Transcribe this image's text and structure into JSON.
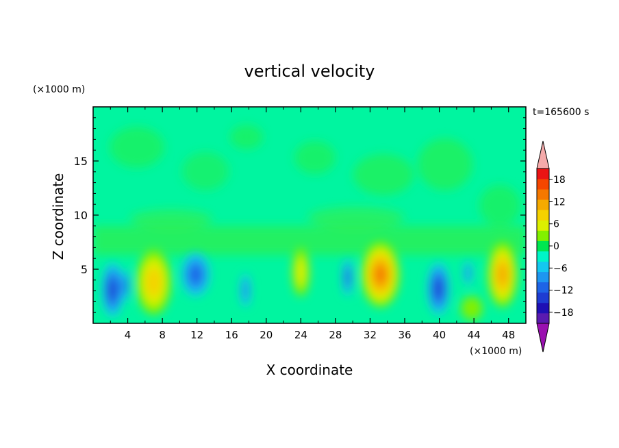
{
  "chart_data": {
    "type": "heatmap",
    "title": "vertical velocity",
    "xlabel": "X coordinate",
    "ylabel": "Z coordinate",
    "x_unit_label": "(×1000 m)",
    "y_unit_label": "(×1000 m)",
    "time_label": "t=165600 s",
    "xlim": [
      0,
      50
    ],
    "ylim": [
      0,
      20
    ],
    "x_ticks": [
      4,
      8,
      12,
      16,
      20,
      24,
      28,
      32,
      36,
      40,
      44,
      48
    ],
    "x_tick_labels": [
      "4",
      "8",
      "12",
      "16",
      "20",
      "24",
      "28",
      "32",
      "36",
      "40",
      "44",
      "48"
    ],
    "y_ticks": [
      5,
      10,
      15
    ],
    "y_tick_labels": [
      "5",
      "10",
      "15"
    ],
    "colorbar": {
      "levels": [
        -21,
        -18,
        -15,
        -12,
        -9,
        -6,
        -3,
        0,
        3,
        6,
        9,
        12,
        15,
        18,
        21
      ],
      "tick_values": [
        -18,
        -12,
        -6,
        0,
        6,
        12,
        18
      ],
      "tick_labels": [
        "−18",
        "−12",
        "−6",
        "0",
        "6",
        "12",
        "18"
      ],
      "colors": [
        "#5a1ab0",
        "#1e0fb4",
        "#1e3cd2",
        "#1e64e6",
        "#1e96f0",
        "#14c8f0",
        "#00f5c8",
        "#00e650",
        "#82f000",
        "#dcf000",
        "#f5d200",
        "#f5aa00",
        "#f57800",
        "#f54600",
        "#eb1414"
      ],
      "under_color": "#9a10b0",
      "over_color": "#f5aaaa"
    },
    "cells": [
      {
        "x": [
          1,
          3.5
        ],
        "z": [
          0.6,
          5.6
        ],
        "value": -13
      },
      {
        "x": [
          3.2,
          4.2
        ],
        "z": [
          2,
          5
        ],
        "value": -9
      },
      {
        "x": [
          10.2,
          13.5
        ],
        "z": [
          2.5,
          6.5
        ],
        "value": -10
      },
      {
        "x": [
          17,
          18.2
        ],
        "z": [
          1.5,
          4.6
        ],
        "value": -8
      },
      {
        "x": [
          28.8,
          30
        ],
        "z": [
          2.5,
          6
        ],
        "value": -9
      },
      {
        "x": [
          38.6,
          41.2
        ],
        "z": [
          0.8,
          5.6
        ],
        "value": -14
      },
      {
        "x": [
          42.8,
          43.8
        ],
        "z": [
          3.5,
          5.8
        ],
        "value": -8
      },
      {
        "x": [
          5,
          9
        ],
        "z": [
          0.8,
          6.8
        ],
        "value": 10
      },
      {
        "x": [
          23,
          25
        ],
        "z": [
          2.5,
          7
        ],
        "value": 8
      },
      {
        "x": [
          31,
          35.4
        ],
        "z": [
          1.5,
          7.5
        ],
        "value": 15
      },
      {
        "x": [
          45.6,
          49
        ],
        "z": [
          1.5,
          7.5
        ],
        "value": 12
      },
      {
        "x": [
          42.5,
          45
        ],
        "z": [
          0.3,
          2.5
        ],
        "value": 4
      }
    ]
  }
}
